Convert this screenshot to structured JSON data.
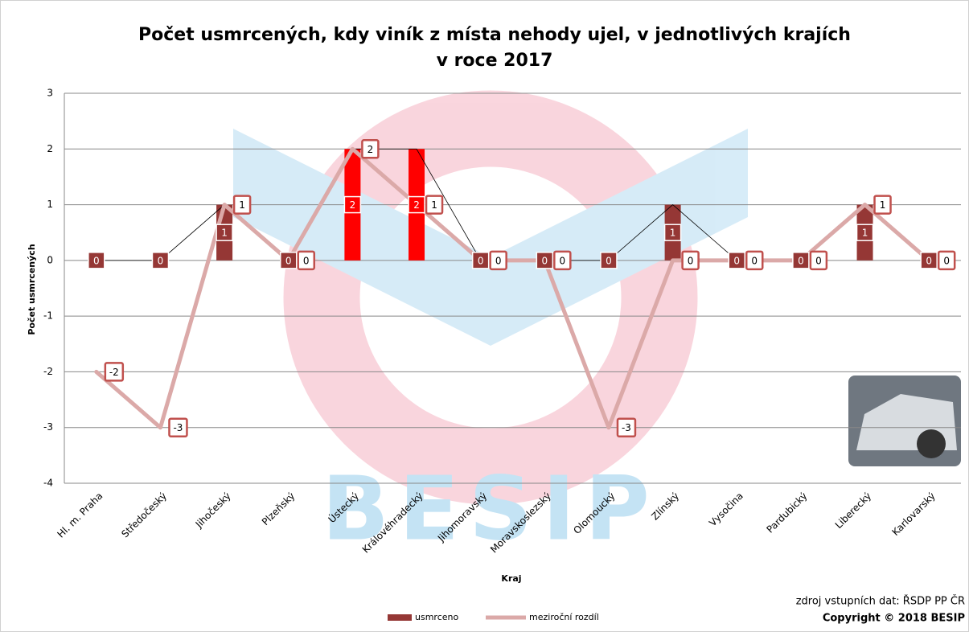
{
  "chart_data": {
    "type": "bar_line",
    "title": [
      "Počet usmrcených, kdy viník z místa nehody ujel, v jednotlivých krajích",
      "v roce 2017"
    ],
    "x_label": "Kraj",
    "y_label": "Počet usmrcených",
    "categories": [
      "Hl. m. Praha",
      "Středočeský",
      "Jihočeský",
      "Plzeňský",
      "Ústecký",
      "Královéhradecký",
      "Jihomoravský",
      "Moravskoslezský",
      "Olomoucký",
      "Zlínský",
      "Vysočina",
      "Pardubický",
      "Liberecký",
      "Karlovarský"
    ],
    "series": [
      {
        "name": "usmrceno",
        "type": "bar",
        "color": "#953735",
        "colors": [
          "#953735",
          "#953735",
          "#953735",
          "#953735",
          "#ff0000",
          "#ff0000",
          "#953735",
          "#953735",
          "#953735",
          "#953735",
          "#953735",
          "#953735",
          "#953735",
          "#953735"
        ],
        "values": [
          0,
          0,
          1,
          0,
          2,
          2,
          0,
          0,
          0,
          1,
          0,
          0,
          1,
          0
        ]
      },
      {
        "name": "meziroční rozdíl",
        "type": "line",
        "color": "#dba9a8",
        "values": [
          -2,
          -3,
          1,
          0,
          2,
          1,
          0,
          0,
          -3,
          0,
          0,
          0,
          1,
          0
        ]
      }
    ],
    "ylim": [
      -4,
      3
    ],
    "yticks": [
      -4,
      -3,
      -2,
      -1,
      0,
      1,
      2,
      3
    ],
    "grid": true,
    "legend": "bottom",
    "source": "zdroj vstupních dat: ŘSDP PP ČR",
    "copyright": "Copyright © 2018 BESIP",
    "watermark": "BESIP"
  }
}
